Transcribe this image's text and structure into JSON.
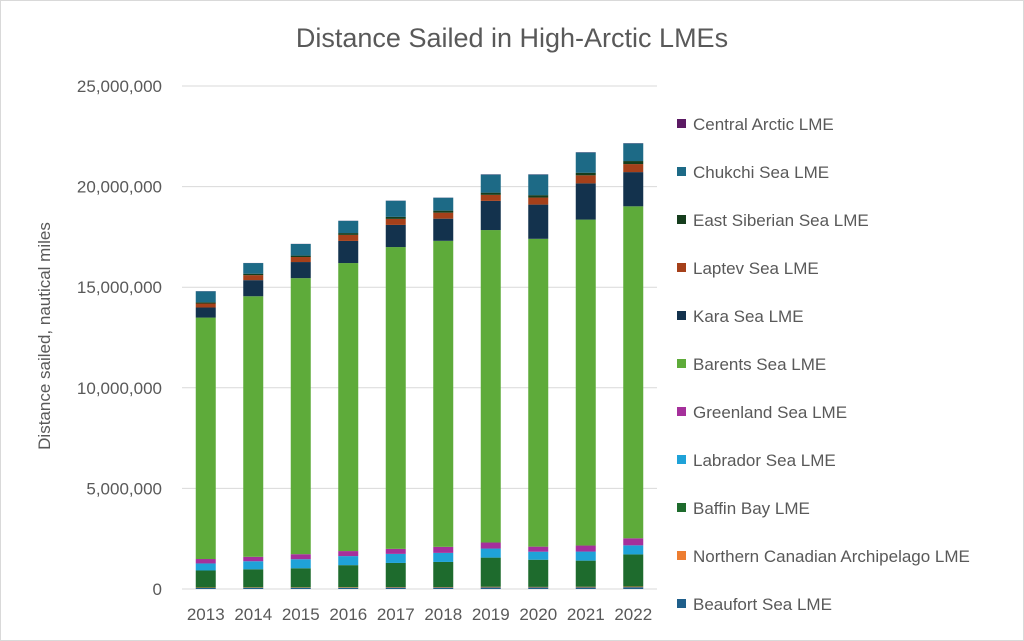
{
  "chart_data": {
    "type": "bar",
    "stacked": true,
    "title": "Distance Sailed in High-Arctic LMEs",
    "xlabel": "",
    "ylabel": "Distance sailed, nautical miles",
    "ylim": [
      0,
      25000000
    ],
    "yticks": [
      0,
      5000000,
      10000000,
      15000000,
      20000000,
      25000000
    ],
    "ytick_labels": [
      "0",
      "5,000,000",
      "10,000,000",
      "15,000,000",
      "20,000,000",
      "25,000,000"
    ],
    "grid": true,
    "legend_position": "right",
    "categories": [
      "2013",
      "2014",
      "2015",
      "2016",
      "2017",
      "2018",
      "2019",
      "2020",
      "2021",
      "2022"
    ],
    "series": [
      {
        "name": "Beaufort Sea LME",
        "color": "#1f5f8b",
        "values": [
          50000,
          60000,
          60000,
          60000,
          70000,
          70000,
          80000,
          80000,
          80000,
          90000
        ]
      },
      {
        "name": "Northern Canadian Archipelago LME",
        "color": "#ed7d31",
        "values": [
          20000,
          20000,
          20000,
          25000,
          25000,
          25000,
          30000,
          25000,
          30000,
          30000
        ]
      },
      {
        "name": "Baffin Bay LME",
        "color": "#1e6b2d",
        "values": [
          850000,
          900000,
          950000,
          1100000,
          1200000,
          1250000,
          1450000,
          1350000,
          1300000,
          1600000
        ]
      },
      {
        "name": "Labrador Sea LME",
        "color": "#1fa2d8",
        "values": [
          350000,
          400000,
          450000,
          450000,
          450000,
          450000,
          450000,
          400000,
          450000,
          450000
        ]
      },
      {
        "name": "Greenland Sea LME",
        "color": "#a5309b",
        "values": [
          220000,
          220000,
          250000,
          250000,
          250000,
          300000,
          300000,
          250000,
          300000,
          350000
        ]
      },
      {
        "name": "Barents Sea LME",
        "color": "#5eab3a",
        "values": [
          12000000,
          12950000,
          13720000,
          14315000,
          15000000,
          15210000,
          15530000,
          15300000,
          16200000,
          16500000
        ]
      },
      {
        "name": "Kara Sea LME",
        "color": "#13324d",
        "values": [
          500000,
          800000,
          800000,
          1100000,
          1100000,
          1100000,
          1450000,
          1700000,
          1800000,
          1700000
        ]
      },
      {
        "name": "Laptev Sea LME",
        "color": "#a5401a",
        "values": [
          200000,
          250000,
          250000,
          300000,
          300000,
          300000,
          300000,
          350000,
          400000,
          400000
        ]
      },
      {
        "name": "East Siberian Sea LME",
        "color": "#153d1d",
        "values": [
          60000,
          70000,
          70000,
          90000,
          100000,
          100000,
          110000,
          120000,
          130000,
          150000
        ]
      },
      {
        "name": "Chukchi Sea LME",
        "color": "#1d6a86",
        "values": [
          550000,
          530000,
          580000,
          610000,
          805000,
          645000,
          900000,
          1025000,
          1010000,
          880000
        ]
      },
      {
        "name": "Central Arctic LME",
        "color": "#5b1a63",
        "values": [
          5000,
          5000,
          5000,
          5000,
          5000,
          5000,
          10000,
          10000,
          10000,
          10000
        ]
      }
    ]
  }
}
